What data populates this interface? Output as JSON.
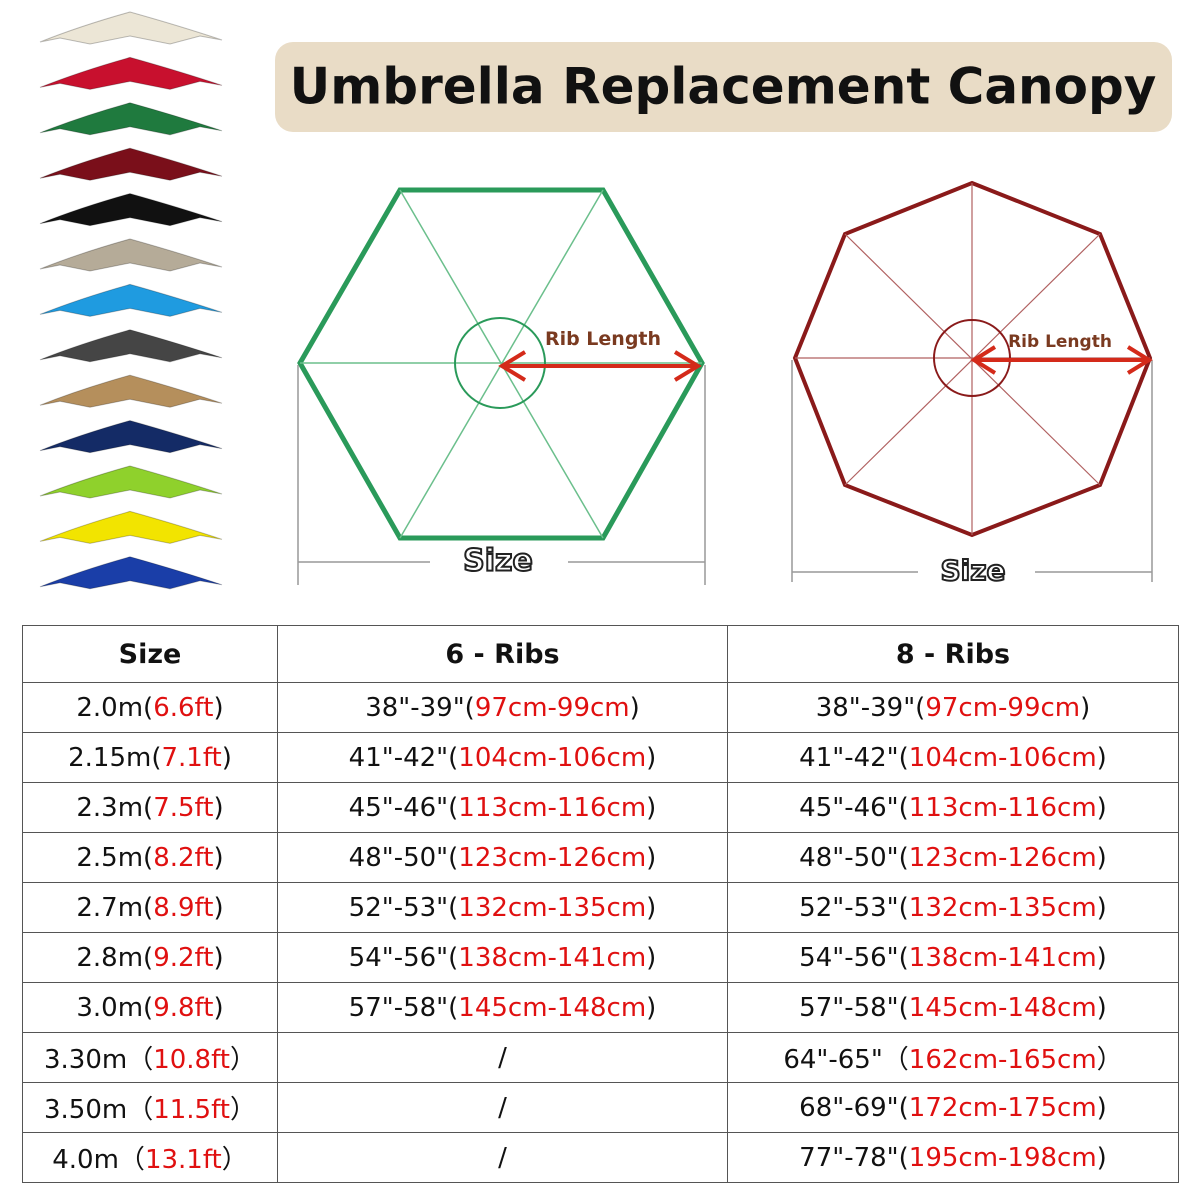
{
  "header": {
    "title": "Umbrella Replacement Canopy"
  },
  "diagrams": [
    {
      "rib_label": "Rib Length",
      "size_label": "Size"
    },
    {
      "rib_label": "Rib Length",
      "size_label": "Size"
    }
  ],
  "table": {
    "columns": [
      "Size",
      "6 - Ribs",
      "8 - Ribs"
    ],
    "rows": [
      [
        [
          "2.0m(",
          "6.6ft",
          ")"
        ],
        [
          "38\"-39\"(",
          "97cm-99cm",
          ")"
        ],
        [
          "38\"-39\"(",
          "97cm-99cm",
          ")"
        ]
      ],
      [
        [
          "2.15m(",
          "7.1ft",
          ")"
        ],
        [
          "41\"-42\"(",
          "104cm-106cm",
          ")"
        ],
        [
          "41\"-42\"(",
          "104cm-106cm",
          ")"
        ]
      ],
      [
        [
          "2.3m(",
          "7.5ft",
          ")"
        ],
        [
          "45\"-46\"(",
          "113cm-116cm",
          ")"
        ],
        [
          "45\"-46\"(",
          "113cm-116cm",
          ")"
        ]
      ],
      [
        [
          "2.5m(",
          "8.2ft",
          ")"
        ],
        [
          "48\"-50\"(",
          "123cm-126cm",
          ")"
        ],
        [
          "48\"-50\"(",
          "123cm-126cm",
          ")"
        ]
      ],
      [
        [
          "2.7m(",
          "8.9ft",
          ")"
        ],
        [
          "52\"-53\"(",
          "132cm-135cm",
          ")"
        ],
        [
          "52\"-53\"(",
          "132cm-135cm",
          ")"
        ]
      ],
      [
        [
          "2.8m(",
          "9.2ft",
          ")"
        ],
        [
          "54\"-56\"(",
          "138cm-141cm",
          ")"
        ],
        [
          "54\"-56\"(",
          "138cm-141cm",
          ")"
        ]
      ],
      [
        [
          "3.0m(",
          "9.8ft",
          ")"
        ],
        [
          "57\"-58\"(",
          "145cm-148cm",
          ")"
        ],
        [
          "57\"-58\"(",
          "145cm-148cm",
          ")"
        ]
      ],
      [
        [
          "3.30m（",
          "10.8ft",
          "）"
        ],
        [
          "/"
        ],
        [
          "64\"-65\"（",
          "162cm-165cm",
          "）"
        ]
      ],
      [
        [
          "3.50m（",
          "11.5ft",
          "）"
        ],
        [
          "/"
        ],
        [
          "68\"-69\"(",
          "172cm-175cm",
          ")"
        ]
      ],
      [
        [
          "4.0m（",
          "13.1ft",
          "）"
        ],
        [
          "/"
        ],
        [
          "77\"-78\"(",
          "195cm-198cm",
          ")"
        ]
      ]
    ]
  }
}
